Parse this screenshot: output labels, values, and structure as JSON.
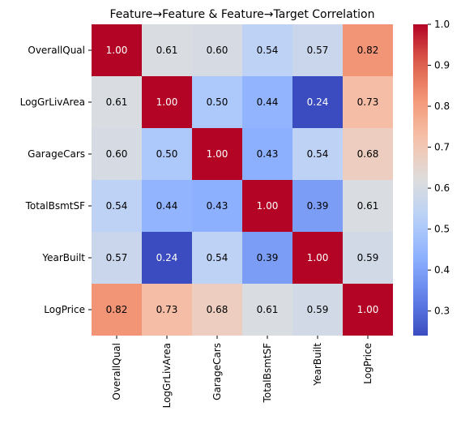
{
  "chart_data": {
    "type": "heatmap",
    "title": "Feature→Feature & Feature→Target Correlation",
    "rows": [
      "OverallQual",
      "LogGrLivArea",
      "GarageCars",
      "TotalBsmtSF",
      "YearBuilt",
      "LogPrice"
    ],
    "columns": [
      "OverallQual",
      "LogGrLivArea",
      "GarageCars",
      "TotalBsmtSF",
      "YearBuilt",
      "LogPrice"
    ],
    "values": [
      [
        1.0,
        0.61,
        0.6,
        0.54,
        0.57,
        0.82
      ],
      [
        0.61,
        1.0,
        0.5,
        0.44,
        0.24,
        0.73
      ],
      [
        0.6,
        0.5,
        1.0,
        0.43,
        0.54,
        0.68
      ],
      [
        0.54,
        0.44,
        0.43,
        1.0,
        0.39,
        0.61
      ],
      [
        0.57,
        0.24,
        0.54,
        0.39,
        1.0,
        0.59
      ],
      [
        0.82,
        0.73,
        0.68,
        0.61,
        0.59,
        1.0
      ]
    ],
    "value_format": "2 decimals",
    "colormap": "coolwarm",
    "color_range": [
      0.24,
      1.0
    ],
    "colorbar_ticks": [
      "0.3",
      "0.4",
      "0.5",
      "0.6",
      "0.7",
      "0.8",
      "0.9",
      "1.0"
    ],
    "colorbar_tick_values": [
      0.3,
      0.4,
      0.5,
      0.6,
      0.7,
      0.8,
      0.9,
      1.0
    ],
    "colors": {
      "low": "#3b4cc0",
      "mid": "#dddddd",
      "high": "#b40426"
    }
  }
}
